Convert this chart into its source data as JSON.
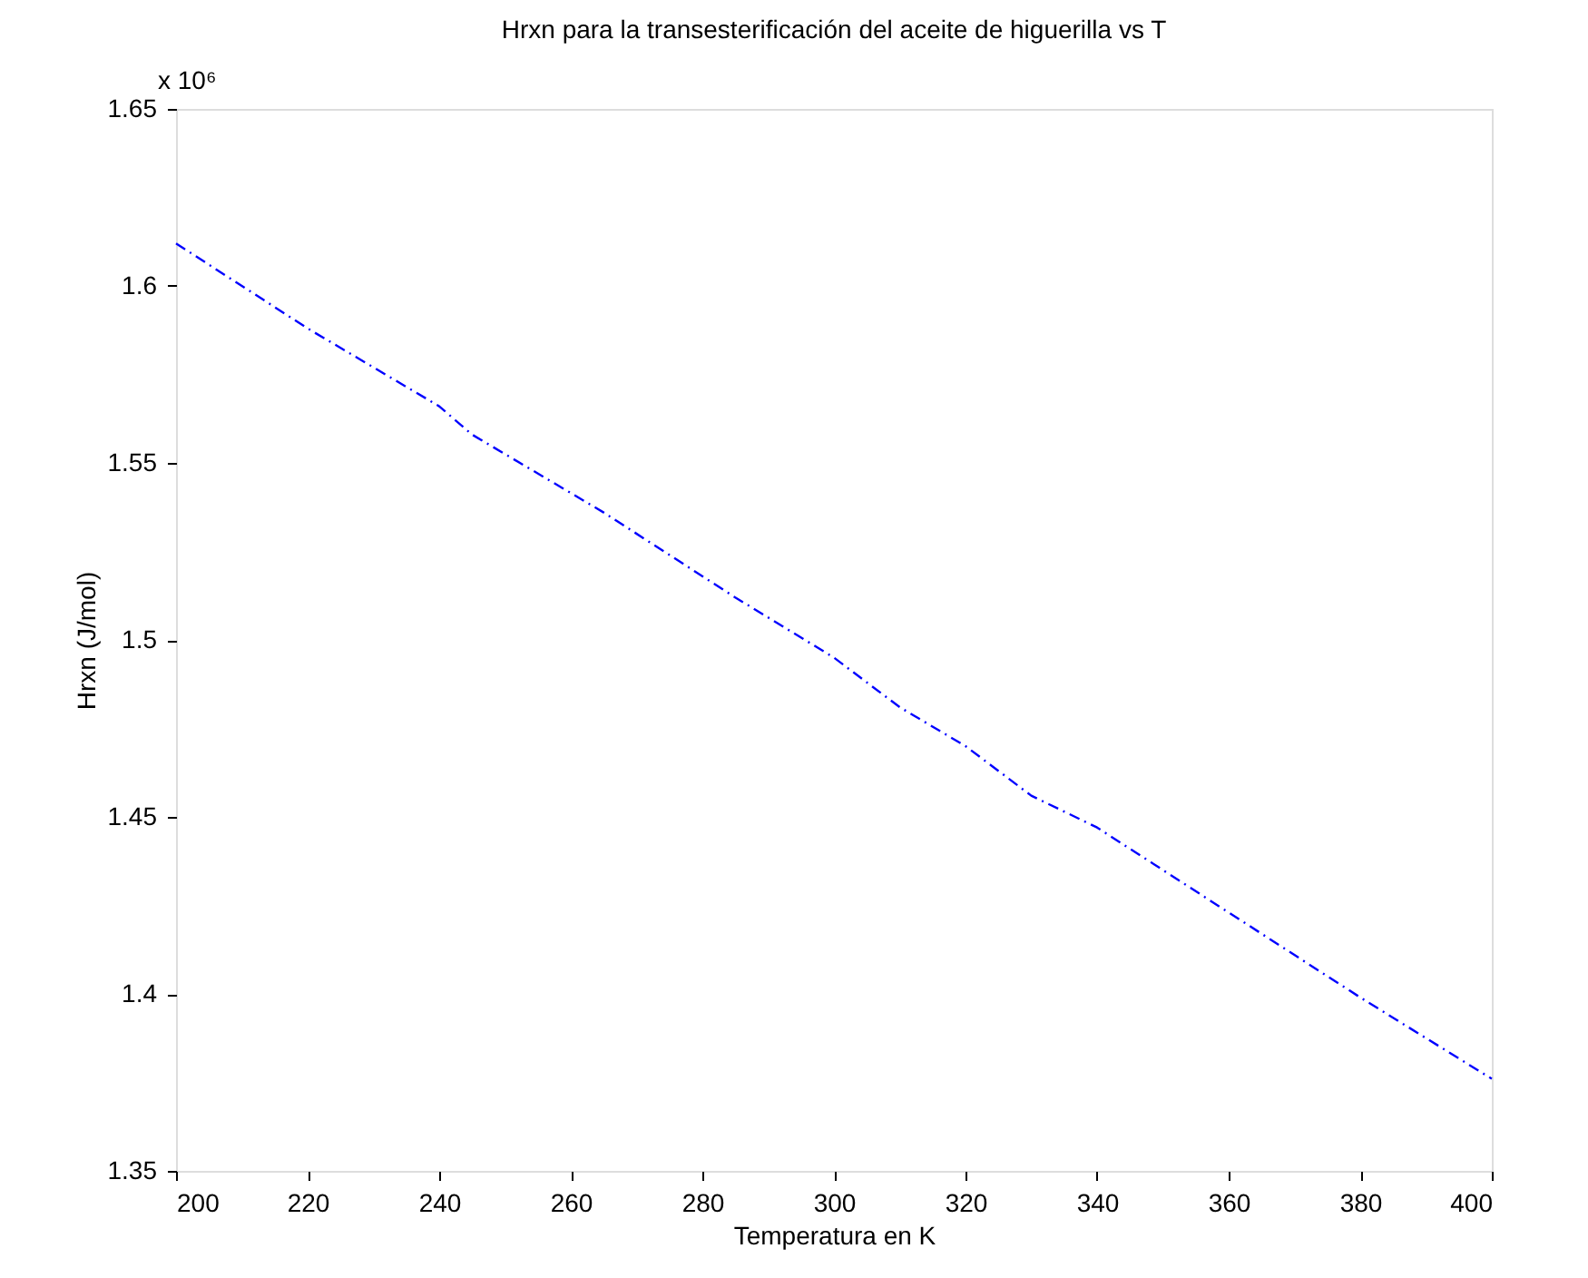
{
  "chart_data": {
    "type": "line",
    "title": "Hrxn para la transesterificación del aceite de higuerilla vs T",
    "xlabel": "Temperatura en K",
    "ylabel": "Hrxn (J/mol)",
    "annotations": [
      "x 10⁶"
    ],
    "x": [
      200,
      220,
      240,
      245,
      265,
      285,
      300,
      310,
      320,
      330,
      340,
      360,
      380,
      400
    ],
    "series": [
      {
        "color": "#0000ff",
        "values": [
          1.612,
          1.588,
          1.566,
          1.558,
          1.536,
          1.512,
          1.495,
          1.481,
          1.47,
          1.456,
          1.447,
          1.423,
          1.399,
          1.376
        ]
      }
    ],
    "xlim": [
      200,
      400
    ],
    "xticks": [
      200,
      220,
      240,
      260,
      280,
      300,
      320,
      340,
      360,
      380,
      400
    ],
    "ylim": [
      1.35,
      1.65
    ],
    "yticks": [
      1.35,
      1.4,
      1.45,
      1.5,
      1.55,
      1.6,
      1.65
    ],
    "grid": false,
    "line_style": "dashed",
    "marker": "none"
  }
}
